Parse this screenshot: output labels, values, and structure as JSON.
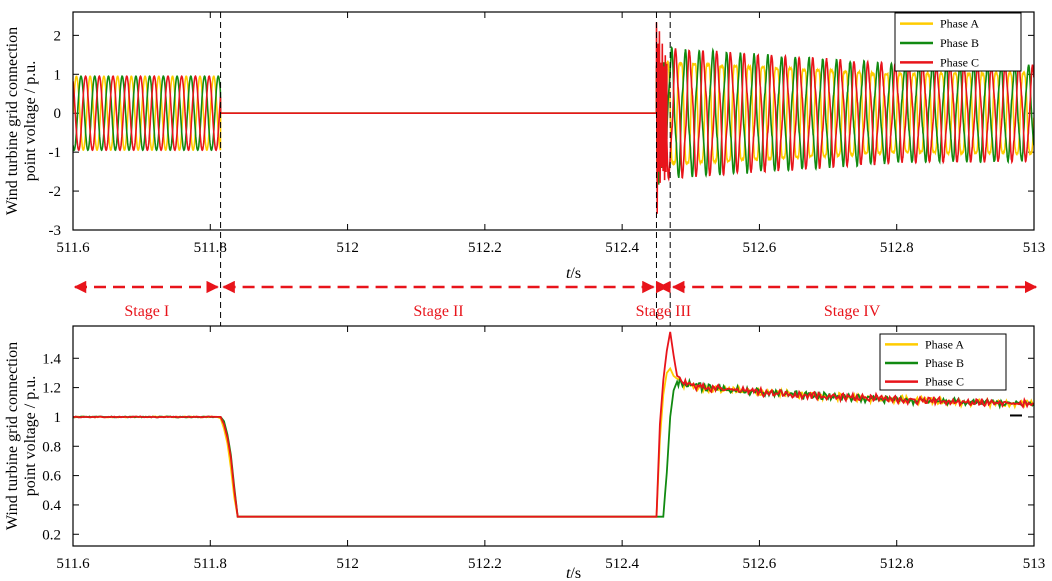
{
  "colors": {
    "phase_a": "#ffcc00",
    "phase_b": "#118a11",
    "phase_c": "#e8141b",
    "stage": "#e8141b"
  },
  "chart_data": [
    {
      "type": "line",
      "title": "",
      "xlabel": "t/s",
      "ylabel": [
        "Wind turbine grid connection",
        "point voltage / p.u."
      ],
      "xlim": [
        511.6,
        513
      ],
      "ylim": [
        -3,
        2.6
      ],
      "xticks": [
        "511.6",
        "511.8",
        "512",
        "512.2",
        "512.4",
        "512.6",
        "512.8",
        "513"
      ],
      "yticks": [
        "-3",
        "-2",
        "-1",
        "0",
        "1",
        "2"
      ],
      "legend_position": "top-right",
      "frequency_hz": 50,
      "series": [
        {
          "name": "Phase A",
          "phase_deg": 0,
          "segments": [
            {
              "x": [
                511.6,
                511.815
              ],
              "shape": "sine",
              "amplitude": 0.95
            },
            {
              "x": [
                511.815,
                512.45
              ],
              "shape": "flat",
              "value": 0
            },
            {
              "x": [
                512.45,
                512.465
              ],
              "shape": "transient",
              "peak": 1.6,
              "trough": -1.8
            },
            {
              "x": [
                512.465,
                513
              ],
              "shape": "decaying-sine",
              "amplitude_start": 1.5,
              "amplitude_end": 1.15
            }
          ]
        },
        {
          "name": "Phase B",
          "phase_deg": -120,
          "segments": [
            {
              "x": [
                511.6,
                511.815
              ],
              "shape": "sine",
              "amplitude": 0.95
            },
            {
              "x": [
                511.815,
                512.45
              ],
              "shape": "flat",
              "value": 0
            },
            {
              "x": [
                512.45,
                512.465
              ],
              "shape": "transient",
              "peak": 1.8,
              "trough": -2.0
            },
            {
              "x": [
                512.465,
                513
              ],
              "shape": "decaying-sine",
              "amplitude_start": 1.5,
              "amplitude_end": 1.15
            }
          ]
        },
        {
          "name": "Phase C",
          "phase_deg": 120,
          "segments": [
            {
              "x": [
                511.6,
                511.815
              ],
              "shape": "sine",
              "amplitude": 0.95
            },
            {
              "x": [
                511.815,
                512.45
              ],
              "shape": "flat",
              "value": 0
            },
            {
              "x": [
                512.45,
                512.465
              ],
              "shape": "transient",
              "peak": 2.4,
              "trough": -2.7
            },
            {
              "x": [
                512.465,
                513
              ],
              "shape": "decaying-sine",
              "amplitude_start": 1.5,
              "amplitude_end": 1.15
            }
          ]
        }
      ]
    },
    {
      "type": "line",
      "title": "",
      "xlabel": "t/s",
      "ylabel": [
        "Wind turbine grid connection",
        "point voltage / p.u."
      ],
      "xlim": [
        511.6,
        513
      ],
      "ylim": [
        0.12,
        1.62
      ],
      "xticks": [
        "511.6",
        "511.8",
        "512",
        "512.2",
        "512.4",
        "512.6",
        "512.8",
        "513"
      ],
      "yticks": [
        "0.2",
        "0.4",
        "0.6",
        "0.8",
        "1",
        "1.2",
        "1.4"
      ],
      "legend_position": "top-right",
      "series": [
        {
          "name": "Phase A",
          "x": [
            511.6,
            511.81,
            511.815,
            511.82,
            511.825,
            511.83,
            511.835,
            511.84,
            512.45,
            512.455,
            512.46,
            512.465,
            512.47,
            512.475,
            512.49,
            512.52,
            512.6,
            512.7,
            512.8,
            512.9,
            513
          ],
          "y": [
            1.0,
            1.0,
            0.99,
            0.92,
            0.82,
            0.65,
            0.45,
            0.32,
            0.32,
            0.85,
            1.15,
            1.3,
            1.33,
            1.28,
            1.22,
            1.19,
            1.17,
            1.14,
            1.12,
            1.1,
            1.09
          ]
        },
        {
          "name": "Phase B",
          "x": [
            511.6,
            511.81,
            511.815,
            511.82,
            511.825,
            511.83,
            511.835,
            511.84,
            512.455,
            512.46,
            512.465,
            512.47,
            512.475,
            512.48,
            512.49,
            512.52,
            512.6,
            512.7,
            512.8,
            512.9,
            513
          ],
          "y": [
            1.0,
            1.0,
            1.0,
            0.97,
            0.88,
            0.74,
            0.52,
            0.32,
            0.32,
            0.32,
            0.62,
            1.0,
            1.18,
            1.24,
            1.23,
            1.2,
            1.17,
            1.14,
            1.12,
            1.1,
            1.09
          ]
        },
        {
          "name": "Phase C",
          "x": [
            511.6,
            511.81,
            511.815,
            511.82,
            511.825,
            511.83,
            511.835,
            511.84,
            512.45,
            512.455,
            512.46,
            512.465,
            512.47,
            512.475,
            512.48,
            512.49,
            512.52,
            512.6,
            512.7,
            512.8,
            512.9,
            513
          ],
          "y": [
            1.0,
            1.0,
            1.0,
            0.95,
            0.86,
            0.72,
            0.5,
            0.32,
            0.32,
            0.95,
            1.25,
            1.45,
            1.58,
            1.42,
            1.28,
            1.23,
            1.2,
            1.17,
            1.14,
            1.12,
            1.1,
            1.09
          ]
        }
      ]
    }
  ],
  "stages": {
    "boundaries": [
      511.815,
      512.45,
      512.47
    ],
    "items": [
      {
        "label": "Stage I",
        "x": [
          511.6,
          511.815
        ]
      },
      {
        "label": "Stage II",
        "x": [
          511.815,
          512.45
        ]
      },
      {
        "label": "Stage III",
        "x": [
          512.45,
          512.47
        ]
      },
      {
        "label": "Stage IV",
        "x": [
          512.47,
          513
        ]
      }
    ]
  }
}
